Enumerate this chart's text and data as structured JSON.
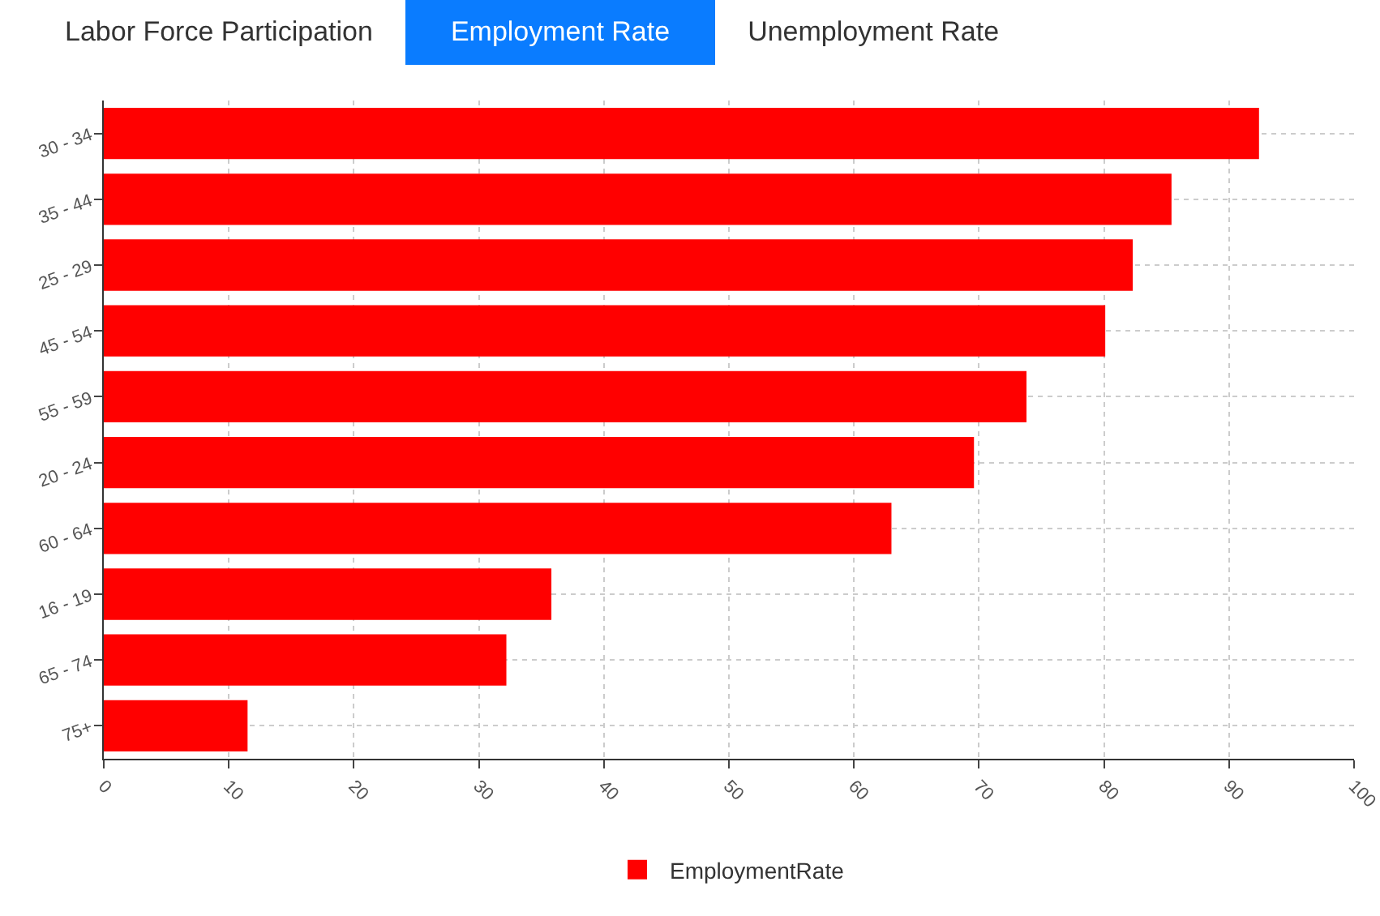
{
  "chart_data": {
    "type": "bar",
    "orientation": "horizontal",
    "title": "Employment Rate",
    "annotations": [
      "Labor Force Participation",
      "Unemployment Rate"
    ],
    "categories": [
      "30 - 34",
      "35 - 44",
      "25 - 29",
      "45 - 54",
      "55 - 59",
      "20 - 24",
      "60 - 64",
      "16 - 19",
      "65 - 74",
      "75+"
    ],
    "series": [
      {
        "name": "EmploymentRate",
        "color": "#ff0000",
        "values": [
          92.4,
          85.4,
          82.3,
          80.1,
          73.8,
          69.6,
          63.0,
          35.8,
          32.2,
          11.5
        ]
      }
    ],
    "xlim": [
      0,
      100
    ],
    "xticks": [
      0,
      10,
      20,
      30,
      40,
      50,
      60,
      70,
      80,
      90,
      100
    ],
    "grid": true,
    "legend": "bottom"
  }
}
